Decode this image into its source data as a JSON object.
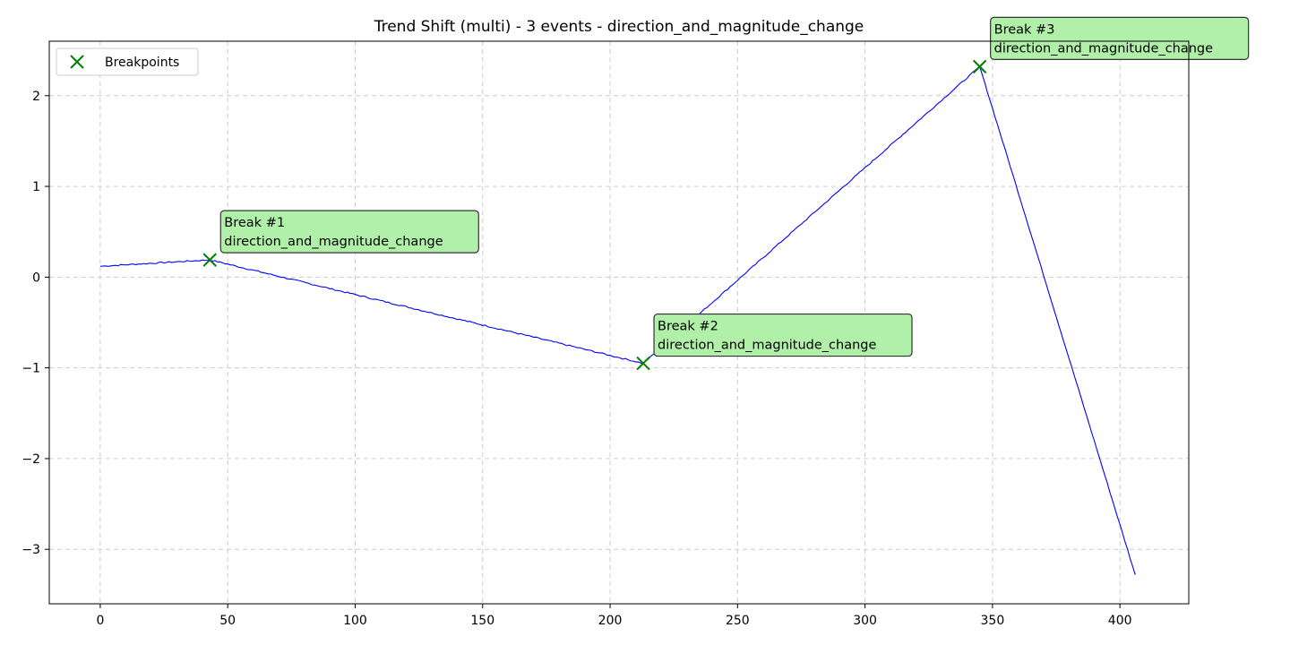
{
  "chart_data": {
    "type": "line",
    "title": "Trend Shift (multi) - 3 events - direction_and_magnitude_change",
    "xlabel": "",
    "ylabel": "",
    "xlim": [
      -20,
      427
    ],
    "ylim": [
      -3.6,
      2.6
    ],
    "x_ticks": [
      0,
      50,
      100,
      150,
      200,
      250,
      300,
      350,
      400
    ],
    "y_ticks": [
      -3,
      -2,
      -1,
      0,
      1,
      2
    ],
    "grid": true,
    "line_color": "#0000ff",
    "marker_color": "#008000",
    "annotation_bg": "#b0f0a8",
    "series": [
      {
        "segments": [
          {
            "x0": 0,
            "y0": 0.12,
            "x1": 43,
            "y1": 0.19
          },
          {
            "x0": 43,
            "y0": 0.19,
            "x1": 213,
            "y1": -0.95
          },
          {
            "x0": 213,
            "y0": -0.95,
            "x1": 345,
            "y1": 2.32
          },
          {
            "x0": 345,
            "y0": 2.32,
            "x1": 406,
            "y1": -3.28
          }
        ]
      }
    ],
    "breakpoints": {
      "name": "Breakpoints",
      "x": [
        43,
        213,
        345
      ],
      "y": [
        0.19,
        -0.95,
        2.32
      ]
    },
    "annotations": [
      {
        "title": "Break #1",
        "label": "direction_and_magnitude_change",
        "x": 43,
        "y": 0.19
      },
      {
        "title": "Break #2",
        "label": "direction_and_magnitude_change",
        "x": 213,
        "y": -0.95
      },
      {
        "title": "Break #3",
        "label": "direction_and_magnitude_change",
        "x": 345,
        "y": 2.32
      }
    ],
    "legend": {
      "position": "top-left",
      "entries": [
        "Breakpoints"
      ]
    }
  }
}
